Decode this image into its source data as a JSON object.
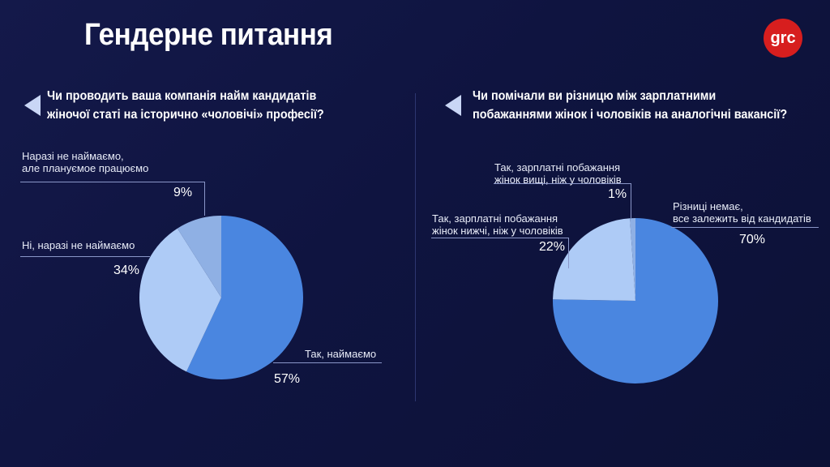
{
  "header": {
    "title": "Гендерне питання",
    "logo_text": "grc"
  },
  "colors": {
    "background": "#0f1440",
    "slice_main": "#4a86e0",
    "slice_light": "#aecbf6",
    "slice_mid": "#8fb0e4",
    "logo": "#d71e1e"
  },
  "chart_data": [
    {
      "type": "pie",
      "title": "Чи проводить ваша компанія найм кандидатів жіночої статі на історично «чоловічі» професії?",
      "slices": [
        {
          "label": "Так, наймаємо",
          "value": 57,
          "value_label": "57%"
        },
        {
          "label": "Ні, наразі не наймаємо",
          "value": 34,
          "value_label": "34%"
        },
        {
          "label_lines": [
            "Наразі не наймаємо,",
            "але плануємое працюємо"
          ],
          "value": 9,
          "value_label": "9%"
        }
      ]
    },
    {
      "type": "pie",
      "title": "Чи помічали ви різницю між зарплатними побажаннями жінок і чоловіків на аналогічні вакансії?",
      "slices": [
        {
          "label_lines": [
            "Різниці немає,",
            "все залежить від кандидатів"
          ],
          "value": 70,
          "value_label": "70%"
        },
        {
          "label_lines": [
            "Так, зарплатні побажання",
            "жінок нижчі, ніж у чоловіків"
          ],
          "value": 22,
          "value_label": "22%"
        },
        {
          "label_lines": [
            "Так, зарплатні побажання",
            "жінок вищі, ніж у чоловіків"
          ],
          "value": 1,
          "value_label": "1%"
        }
      ]
    }
  ],
  "questions": [
    {
      "line1": "Чи проводить ваша компанія найм кандидатів",
      "line2": "жіночої статі на історично «чоловічі» професії?"
    },
    {
      "line1": "Чи помічали ви різницю між зарплатними",
      "line2": "побажаннями жінок і чоловіків на аналогічні вакансії?"
    }
  ]
}
